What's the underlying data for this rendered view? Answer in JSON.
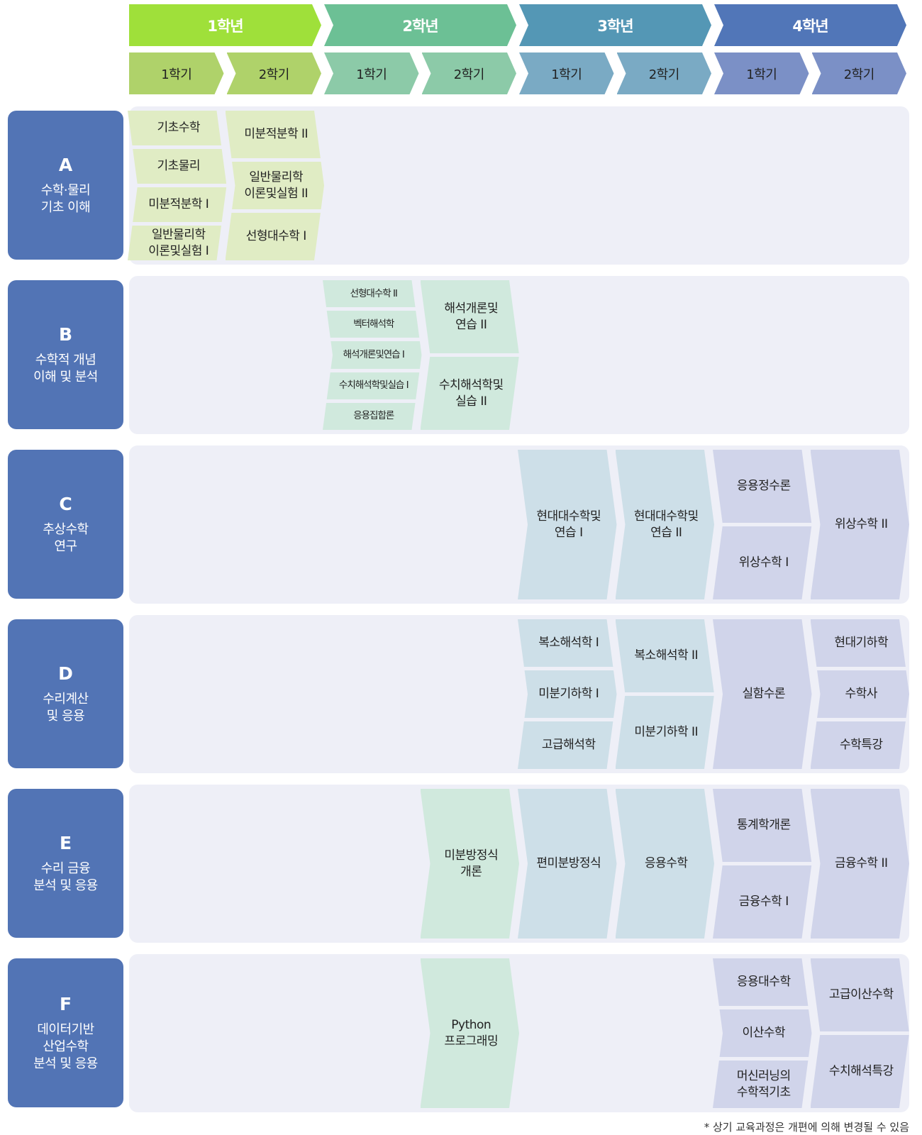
{
  "years": [
    {
      "label": "1학년",
      "color": "#9fe03a",
      "semester_color": "#afd26a",
      "semesters": [
        "1학기",
        "2학기"
      ]
    },
    {
      "label": "2학년",
      "color": "#6cc095",
      "semester_color": "#8ccaa8",
      "semesters": [
        "1학기",
        "2학기"
      ]
    },
    {
      "label": "3학년",
      "color": "#5497b5",
      "semester_color": "#7aaac4",
      "semesters": [
        "1학기",
        "2학기"
      ]
    },
    {
      "label": "4학년",
      "color": "#5176b8",
      "semester_color": "#7b90c6",
      "semesters": [
        "1학기",
        "2학기"
      ]
    }
  ],
  "colors": {
    "label_box": "#5274b5",
    "row_bg": "#eeeff7",
    "lightgreen": "#e0ecc4",
    "mint": "#d0e9dd",
    "blue": "#cddfe8",
    "lavender": "#d0d4ea"
  },
  "rows": [
    {
      "letter": "A",
      "title": "수학·물리\n기초 이해",
      "groups": [
        {
          "col": 0,
          "color": "lightgreen",
          "items": [
            "기초수학",
            "기초물리",
            "미분적분학 I",
            "일반물리학\n이론및실험 I"
          ]
        },
        {
          "col": 1,
          "color": "lightgreen",
          "items": [
            "미분적분학 II",
            "일반물리학\n이론및실험 II",
            "선형대수학 I"
          ]
        }
      ]
    },
    {
      "letter": "B",
      "title": "수학적 개념\n이해 및 분석",
      "groups": [
        {
          "col": 2,
          "color": "mint",
          "small": true,
          "items": [
            "선형대수학 II",
            "벡터해석학",
            "해석개론및연습 I",
            "수치해석학및실습 I",
            "응용집합론"
          ]
        },
        {
          "col": 3,
          "color": "mint",
          "items": [
            "해석개론및\n연습 II",
            "수치해석학및\n실습 II"
          ]
        }
      ]
    },
    {
      "letter": "C",
      "title": "추상수학\n연구",
      "groups": [
        {
          "col": 4,
          "color": "blue",
          "items": [
            "현대대수학및\n연습 I"
          ]
        },
        {
          "col": 5,
          "color": "blue",
          "items": [
            "현대대수학및\n연습 II"
          ]
        },
        {
          "col": 6,
          "color": "lavender",
          "items": [
            "응용정수론",
            "위상수학 I"
          ]
        },
        {
          "col": 7,
          "color": "lavender",
          "items": [
            "위상수학 II"
          ]
        }
      ]
    },
    {
      "letter": "D",
      "title": "수리계산\n및 응용",
      "groups": [
        {
          "col": 4,
          "color": "blue",
          "items": [
            "복소해석학 I",
            "미분기하학 I",
            "고급해석학"
          ]
        },
        {
          "col": 5,
          "color": "blue",
          "items": [
            "복소해석학 II",
            "미분기하학 II"
          ]
        },
        {
          "col": 6,
          "color": "lavender",
          "items": [
            "실함수론"
          ]
        },
        {
          "col": 7,
          "color": "lavender",
          "items": [
            "현대기하학",
            "수학사",
            "수학특강"
          ]
        }
      ]
    },
    {
      "letter": "E",
      "title": "수리 금융\n분석 및 응용",
      "groups": [
        {
          "col": 3,
          "color": "mint",
          "items": [
            "미분방정식\n개론"
          ]
        },
        {
          "col": 4,
          "color": "blue",
          "items": [
            "편미분방정식"
          ]
        },
        {
          "col": 5,
          "color": "blue",
          "items": [
            "응용수학"
          ]
        },
        {
          "col": 6,
          "color": "lavender",
          "items": [
            "통계학개론",
            "금융수학 I"
          ]
        },
        {
          "col": 7,
          "color": "lavender",
          "items": [
            "금융수학 II"
          ]
        }
      ]
    },
    {
      "letter": "F",
      "title": "데이터기반\n산업수학\n분석 및 응용",
      "groups": [
        {
          "col": 3,
          "color": "mint",
          "items": [
            "Python\n프로그래밍"
          ]
        },
        {
          "col": 6,
          "color": "lavender",
          "items": [
            "응용대수학",
            "이산수학",
            "머신러닝의\n수학적기초"
          ]
        },
        {
          "col": 7,
          "color": "lavender",
          "items": [
            "고급이산수학",
            "수치해석특강"
          ]
        }
      ]
    }
  ],
  "footnote": "* 상기 교육과정은 개편에 의해 변경될 수 있음"
}
